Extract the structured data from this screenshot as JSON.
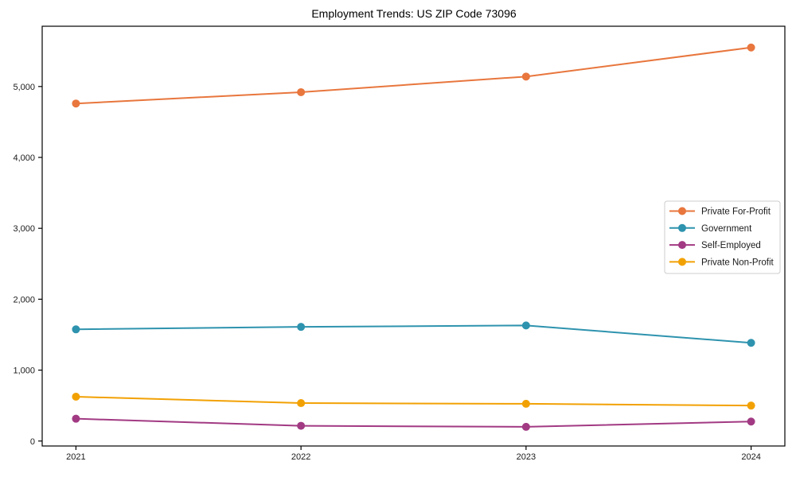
{
  "chart_data": {
    "type": "line",
    "title": "Employment Trends: US ZIP Code 73096",
    "x": [
      2021,
      2022,
      2023,
      2024
    ],
    "x_labels": [
      "2021",
      "2022",
      "2023",
      "2024"
    ],
    "series": [
      {
        "name": "Private For-Profit",
        "color": "#E8763D",
        "values": [
          4760,
          4920,
          5140,
          5550
        ]
      },
      {
        "name": "Government",
        "color": "#2E93AE",
        "values": [
          1575,
          1610,
          1630,
          1385
        ]
      },
      {
        "name": "Self-Employed",
        "color": "#A23A83",
        "values": [
          315,
          215,
          200,
          275
        ]
      },
      {
        "name": "Private Non-Profit",
        "color": "#F2A104",
        "values": [
          625,
          535,
          525,
          500
        ]
      }
    ],
    "xlabel": "",
    "ylabel": "",
    "xlim": [
      2020.85,
      2024.15
    ],
    "ylim": [
      -70,
      5850
    ],
    "yticks": [
      0,
      1000,
      2000,
      3000,
      4000,
      5000
    ],
    "ytick_labels": [
      "0",
      "1,000",
      "2,000",
      "3,000",
      "4,000",
      "5,000"
    ],
    "grid": false,
    "legend": {
      "position": "center-right",
      "background": "#ffffff",
      "border_color": "#cccccc"
    },
    "axis_color": "#000000",
    "tick_label_color": "#1a1a1a",
    "marker": "circle",
    "marker_radius": 5,
    "line_width": 2
  }
}
